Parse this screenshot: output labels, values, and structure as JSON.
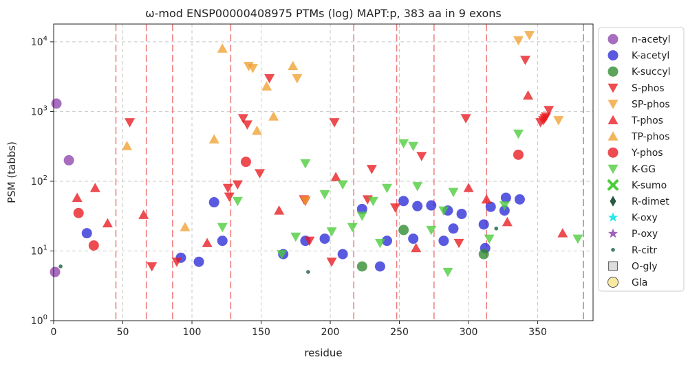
{
  "chart_data": {
    "type": "scatter",
    "title": "ω-mod ENSP00000408975 PTMs (log) MAPT:p, 383 aa in 9 exons",
    "xlabel": "residue",
    "ylabel": "PSM (tabbs)",
    "xlim": [
      0,
      390
    ],
    "ylim": [
      1,
      18000
    ],
    "yscale": "log",
    "x_ticks": [
      0,
      50,
      100,
      150,
      200,
      250,
      300,
      350
    ],
    "y_ticks": [
      {
        "value": 1,
        "base": "10",
        "exp": "0"
      },
      {
        "value": 10,
        "base": "10",
        "exp": "1"
      },
      {
        "value": 100,
        "base": "10",
        "exp": "2"
      },
      {
        "value": 1000,
        "base": "10",
        "exp": "3"
      },
      {
        "value": 10000,
        "base": "10",
        "exp": "4"
      }
    ],
    "grid": true,
    "exon_boundaries": [
      45,
      67,
      86,
      128,
      217,
      248,
      275,
      313
    ],
    "protein_end": 383,
    "legend_position": "outside-right",
    "series": [
      {
        "name": "n-acetyl",
        "marker": "circle",
        "color": "#8e44ad",
        "points": [
          [
            2,
            1300
          ],
          [
            1,
            5
          ],
          [
            11,
            200
          ]
        ]
      },
      {
        "name": "K-acetyl",
        "marker": "circle",
        "color": "#2b2bd9",
        "points": [
          [
            24,
            18
          ],
          [
            92,
            8
          ],
          [
            105,
            7
          ],
          [
            116,
            50
          ],
          [
            122,
            14
          ],
          [
            166,
            9
          ],
          [
            182,
            14
          ],
          [
            196,
            15
          ],
          [
            209,
            9
          ],
          [
            223,
            40
          ],
          [
            236,
            6
          ],
          [
            241,
            14
          ],
          [
            253,
            52
          ],
          [
            260,
            15
          ],
          [
            263,
            44
          ],
          [
            273,
            45
          ],
          [
            282,
            14
          ],
          [
            285,
            38
          ],
          [
            289,
            21
          ],
          [
            295,
            34
          ],
          [
            311,
            24
          ],
          [
            312,
            11
          ],
          [
            316,
            43
          ],
          [
            326,
            38
          ],
          [
            327,
            58
          ],
          [
            337,
            55
          ]
        ]
      },
      {
        "name": "K-succyl",
        "marker": "circle",
        "color": "#2e8b2e",
        "points": [
          [
            223,
            6
          ],
          [
            253,
            20
          ],
          [
            311,
            9
          ]
        ]
      },
      {
        "name": "S-phos",
        "marker": "triangle-down",
        "color": "#e8191f",
        "points": [
          [
            55,
            700
          ],
          [
            71,
            6
          ],
          [
            89,
            7
          ],
          [
            126,
            80
          ],
          [
            127,
            60
          ],
          [
            133,
            90
          ],
          [
            137,
            800
          ],
          [
            140,
            650
          ],
          [
            149,
            130
          ],
          [
            156,
            3000
          ],
          [
            181,
            55
          ],
          [
            182,
            52
          ],
          [
            185,
            14
          ],
          [
            201,
            7
          ],
          [
            203,
            700
          ],
          [
            227,
            55
          ],
          [
            230,
            150
          ],
          [
            247,
            42
          ],
          [
            266,
            230
          ],
          [
            293,
            13
          ],
          [
            298,
            800
          ],
          [
            341,
            5500
          ],
          [
            352,
            700
          ],
          [
            354,
            750
          ],
          [
            355,
            800
          ],
          [
            356,
            850
          ],
          [
            358,
            1050
          ]
        ]
      },
      {
        "name": "SP-phos",
        "marker": "triangle-down",
        "color": "#f0a030",
        "points": [
          [
            141,
            4500
          ],
          [
            144,
            4200
          ],
          [
            176,
            3000
          ],
          [
            182,
            53
          ],
          [
            336,
            10500
          ],
          [
            344,
            12500
          ],
          [
            365,
            750
          ]
        ]
      },
      {
        "name": "T-phos",
        "marker": "triangle-up",
        "color": "#e8191f",
        "points": [
          [
            17,
            58
          ],
          [
            30,
            80
          ],
          [
            39,
            25
          ],
          [
            65,
            33
          ],
          [
            111,
            13
          ],
          [
            163,
            38
          ],
          [
            204,
            115
          ],
          [
            262,
            11
          ],
          [
            300,
            80
          ],
          [
            313,
            55
          ],
          [
            328,
            26
          ],
          [
            343,
            1700
          ],
          [
            368,
            18
          ]
        ]
      },
      {
        "name": "TP-phos",
        "marker": "triangle-up",
        "color": "#f0a030",
        "points": [
          [
            53,
            320
          ],
          [
            95,
            22
          ],
          [
            116,
            400
          ],
          [
            122,
            8000
          ],
          [
            147,
            530
          ],
          [
            154,
            2300
          ],
          [
            159,
            850
          ],
          [
            173,
            4500
          ]
        ]
      },
      {
        "name": "Y-phos",
        "marker": "circle",
        "color": "#e8191f",
        "points": [
          [
            18,
            35
          ],
          [
            29,
            12
          ],
          [
            139,
            190
          ],
          [
            336,
            240
          ]
        ]
      },
      {
        "name": "K-GG",
        "marker": "triangle-down",
        "color": "#4ccc3a",
        "points": [
          [
            122,
            22
          ],
          [
            133,
            52
          ],
          [
            165,
            9
          ],
          [
            175,
            16
          ],
          [
            182,
            180
          ],
          [
            196,
            65
          ],
          [
            201,
            19
          ],
          [
            209,
            90
          ],
          [
            216,
            22
          ],
          [
            223,
            32
          ],
          [
            231,
            52
          ],
          [
            236,
            13
          ],
          [
            241,
            80
          ],
          [
            253,
            350
          ],
          [
            260,
            320
          ],
          [
            263,
            85
          ],
          [
            273,
            20
          ],
          [
            282,
            38
          ],
          [
            285,
            5
          ],
          [
            289,
            70
          ],
          [
            315,
            15
          ],
          [
            326,
            45
          ],
          [
            336,
            480
          ],
          [
            379,
            15
          ]
        ]
      },
      {
        "name": "K-sumo",
        "marker": "x",
        "color": "#4ccc3a",
        "points": []
      },
      {
        "name": "R-dimet",
        "marker": "diamond",
        "color": "#2a5a40",
        "points": []
      },
      {
        "name": "K-oxy",
        "marker": "star",
        "color": "#00e5e5",
        "points": []
      },
      {
        "name": "P-oxy",
        "marker": "star",
        "color": "#8e44ad",
        "points": []
      },
      {
        "name": "R-citr",
        "marker": "small-circle",
        "color": "#2a6a50",
        "points": [
          [
            5,
            6
          ],
          [
            184,
            5
          ],
          [
            320,
            21
          ]
        ]
      },
      {
        "name": "O-gly",
        "marker": "square",
        "color": "#dddddd",
        "points": []
      },
      {
        "name": "Gla",
        "marker": "circle-outline",
        "color": "#f7e9a0",
        "points": []
      }
    ]
  }
}
